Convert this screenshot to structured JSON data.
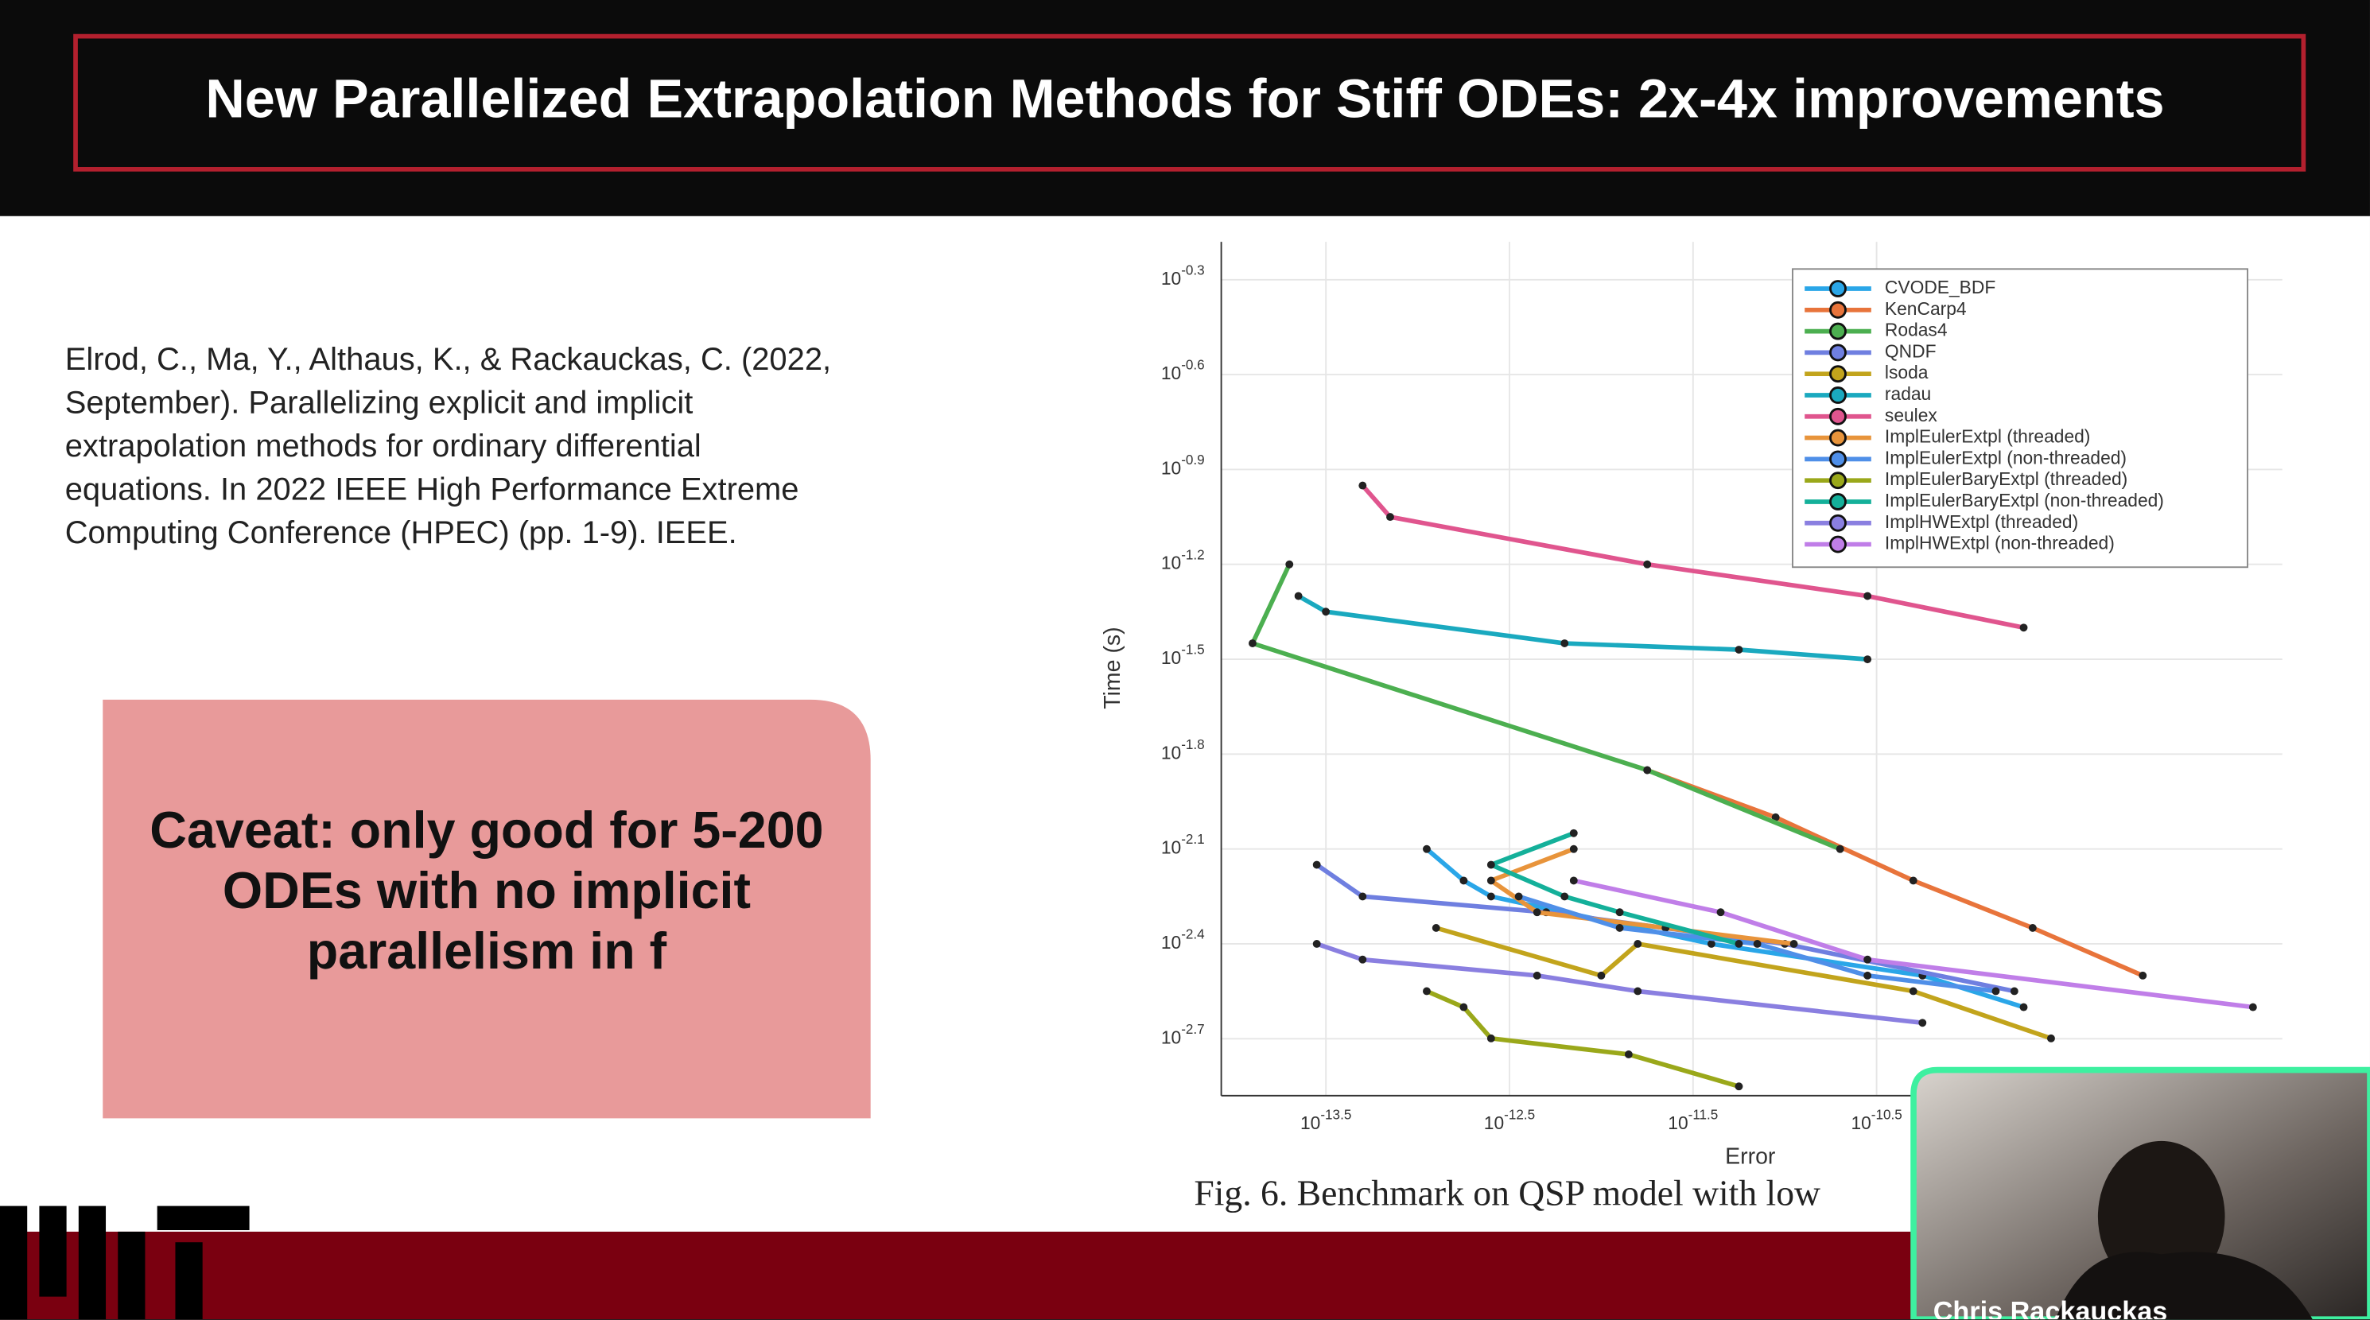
{
  "header": {
    "title": "New Parallelized Extrapolation Methods for Stiff ODEs: 2x-4x improvements"
  },
  "citation": [
    "Elrod, C., Ma, Y., Althaus, K., & Rackauckas, C. (2022,",
    "September). Parallelizing explicit and implicit",
    "extrapolation methods for ordinary differential",
    "equations. In 2022 IEEE High Performance Extreme",
    "Computing Conference (HPEC) (pp. 1-9). IEEE."
  ],
  "caveat": [
    "Caveat: only good for 5-200",
    "ODEs with no implicit",
    "parallelism in f"
  ],
  "figure": {
    "caption": "Fig. 6.  Benchmark on QSP model with low"
  },
  "webcam": {
    "name": "Chris Rackauckas"
  },
  "chart_data": {
    "type": "line",
    "xlabel": "Error",
    "ylabel": "Time (s)",
    "log_x": true,
    "log_y": true,
    "grid": true,
    "legend": "top-right",
    "xlim": [
      8.51e-15,
      5.13e-09
    ],
    "ylim": [
      0.001318,
      0.6607
    ],
    "xticks": [
      {
        "value": 3.162e-14,
        "label": "10^-13.5"
      },
      {
        "value": 3.162e-13,
        "label": "10^-12.5"
      },
      {
        "value": 3.162e-12,
        "label": "10^-11.5"
      },
      {
        "value": 3.162e-11,
        "label": "10^-10.5"
      }
    ],
    "yticks": [
      {
        "value": 0.5012,
        "label": "10^-0.3"
      },
      {
        "value": 0.2512,
        "label": "10^-0.6"
      },
      {
        "value": 0.1259,
        "label": "10^-0.9"
      },
      {
        "value": 0.0631,
        "label": "10^-1.2"
      },
      {
        "value": 0.03162,
        "label": "10^-1.5"
      },
      {
        "value": 0.01585,
        "label": "10^-1.8"
      },
      {
        "value": 0.007943,
        "label": "10^-2.1"
      },
      {
        "value": 0.003981,
        "label": "10^-2.4"
      },
      {
        "value": 0.001995,
        "label": "10^-2.7"
      }
    ],
    "series": [
      {
        "name": "CVODE_BDF",
        "color": "#2aa6e8",
        "x": [
          1.12e-13,
          1.78e-13,
          2.51e-13,
          3.98e-12,
          5.62e-11,
          2e-10
        ],
        "values": [
          0.00794,
          0.00631,
          0.00562,
          0.00398,
          0.00316,
          0.00251
        ]
      },
      {
        "name": "KenCarp4",
        "color": "#e8743b",
        "x": [
          1.78e-12,
          8.91e-12,
          5.01e-11,
          2.24e-10,
          8.91e-10
        ],
        "values": [
          0.0141,
          0.01,
          0.00631,
          0.00447,
          0.00316
        ]
      },
      {
        "name": "Rodas4",
        "color": "#4caf50",
        "x": [
          2e-14,
          1.26e-14,
          1.78e-12,
          2e-11
        ],
        "values": [
          0.0631,
          0.0355,
          0.0141,
          0.00794
        ]
      },
      {
        "name": "QNDF",
        "color": "#6f7fe0",
        "x": [
          2.82e-14,
          5.01e-14,
          5.01e-13,
          1e-11,
          1.78e-10
        ],
        "values": [
          0.00708,
          0.00562,
          0.00501,
          0.00398,
          0.00282
        ]
      },
      {
        "name": "lsoda",
        "color": "#c2a41c",
        "x": [
          1.26e-13,
          1e-12,
          1.58e-12,
          5.01e-11,
          2.82e-10
        ],
        "values": [
          0.00447,
          0.00316,
          0.00398,
          0.00282,
          0.002
        ]
      },
      {
        "name": "radau",
        "color": "#1aa9bf",
        "x": [
          2.24e-14,
          3.16e-14,
          6.31e-13,
          5.62e-12,
          2.82e-11
        ],
        "values": [
          0.0501,
          0.0447,
          0.0355,
          0.0339,
          0.0316
        ]
      },
      {
        "name": "seulex",
        "color": "#e0558e",
        "x": [
          5.01e-14,
          7.08e-14,
          1.78e-12,
          2.82e-11,
          2e-10
        ],
        "values": [
          0.112,
          0.0891,
          0.0631,
          0.0501,
          0.0398
        ]
      },
      {
        "name": "ImplEulerExtpl (threaded)",
        "color": "#e8943b",
        "x": [
          7.08e-13,
          2.51e-13,
          4.47e-13,
          2.24e-12,
          1.12e-11
        ],
        "values": [
          0.00794,
          0.00631,
          0.00501,
          0.00447,
          0.00398
        ]
      },
      {
        "name": "ImplEulerExtpl (non-threaded)",
        "color": "#4f8fe8",
        "x": [
          3.55e-13,
          1.26e-12,
          7.08e-12,
          2.82e-11,
          1.41e-10
        ],
        "values": [
          0.00562,
          0.00447,
          0.00398,
          0.00316,
          0.00282
        ]
      },
      {
        "name": "ImplEulerBaryExtpl (threaded)",
        "color": "#9aa81a",
        "x": [
          1.12e-13,
          1.78e-13,
          2.51e-13,
          1.41e-12,
          5.62e-12
        ],
        "values": [
          0.00282,
          0.00251,
          0.002,
          0.00178,
          0.00141
        ]
      },
      {
        "name": "ImplEulerBaryExtpl (non-threaded)",
        "color": "#14b09a",
        "x": [
          7.08e-13,
          2.51e-13,
          6.31e-13,
          1.26e-12,
          5.62e-12
        ],
        "values": [
          0.00891,
          0.00708,
          0.00562,
          0.00501,
          0.00398
        ]
      },
      {
        "name": "ImplHWExtpl (threaded)",
        "color": "#8a7fe0",
        "x": [
          2.82e-14,
          5.01e-14,
          4.47e-13,
          1.58e-12,
          5.62e-11
        ],
        "values": [
          0.00398,
          0.00355,
          0.00316,
          0.00282,
          0.00224
        ]
      },
      {
        "name": "ImplHWExtpl (non-threaded)",
        "color": "#c07ee8",
        "x": [
          7.08e-13,
          4.47e-12,
          2.82e-11,
          3.55e-09
        ],
        "values": [
          0.00631,
          0.00501,
          0.00355,
          0.00251
        ]
      }
    ]
  }
}
